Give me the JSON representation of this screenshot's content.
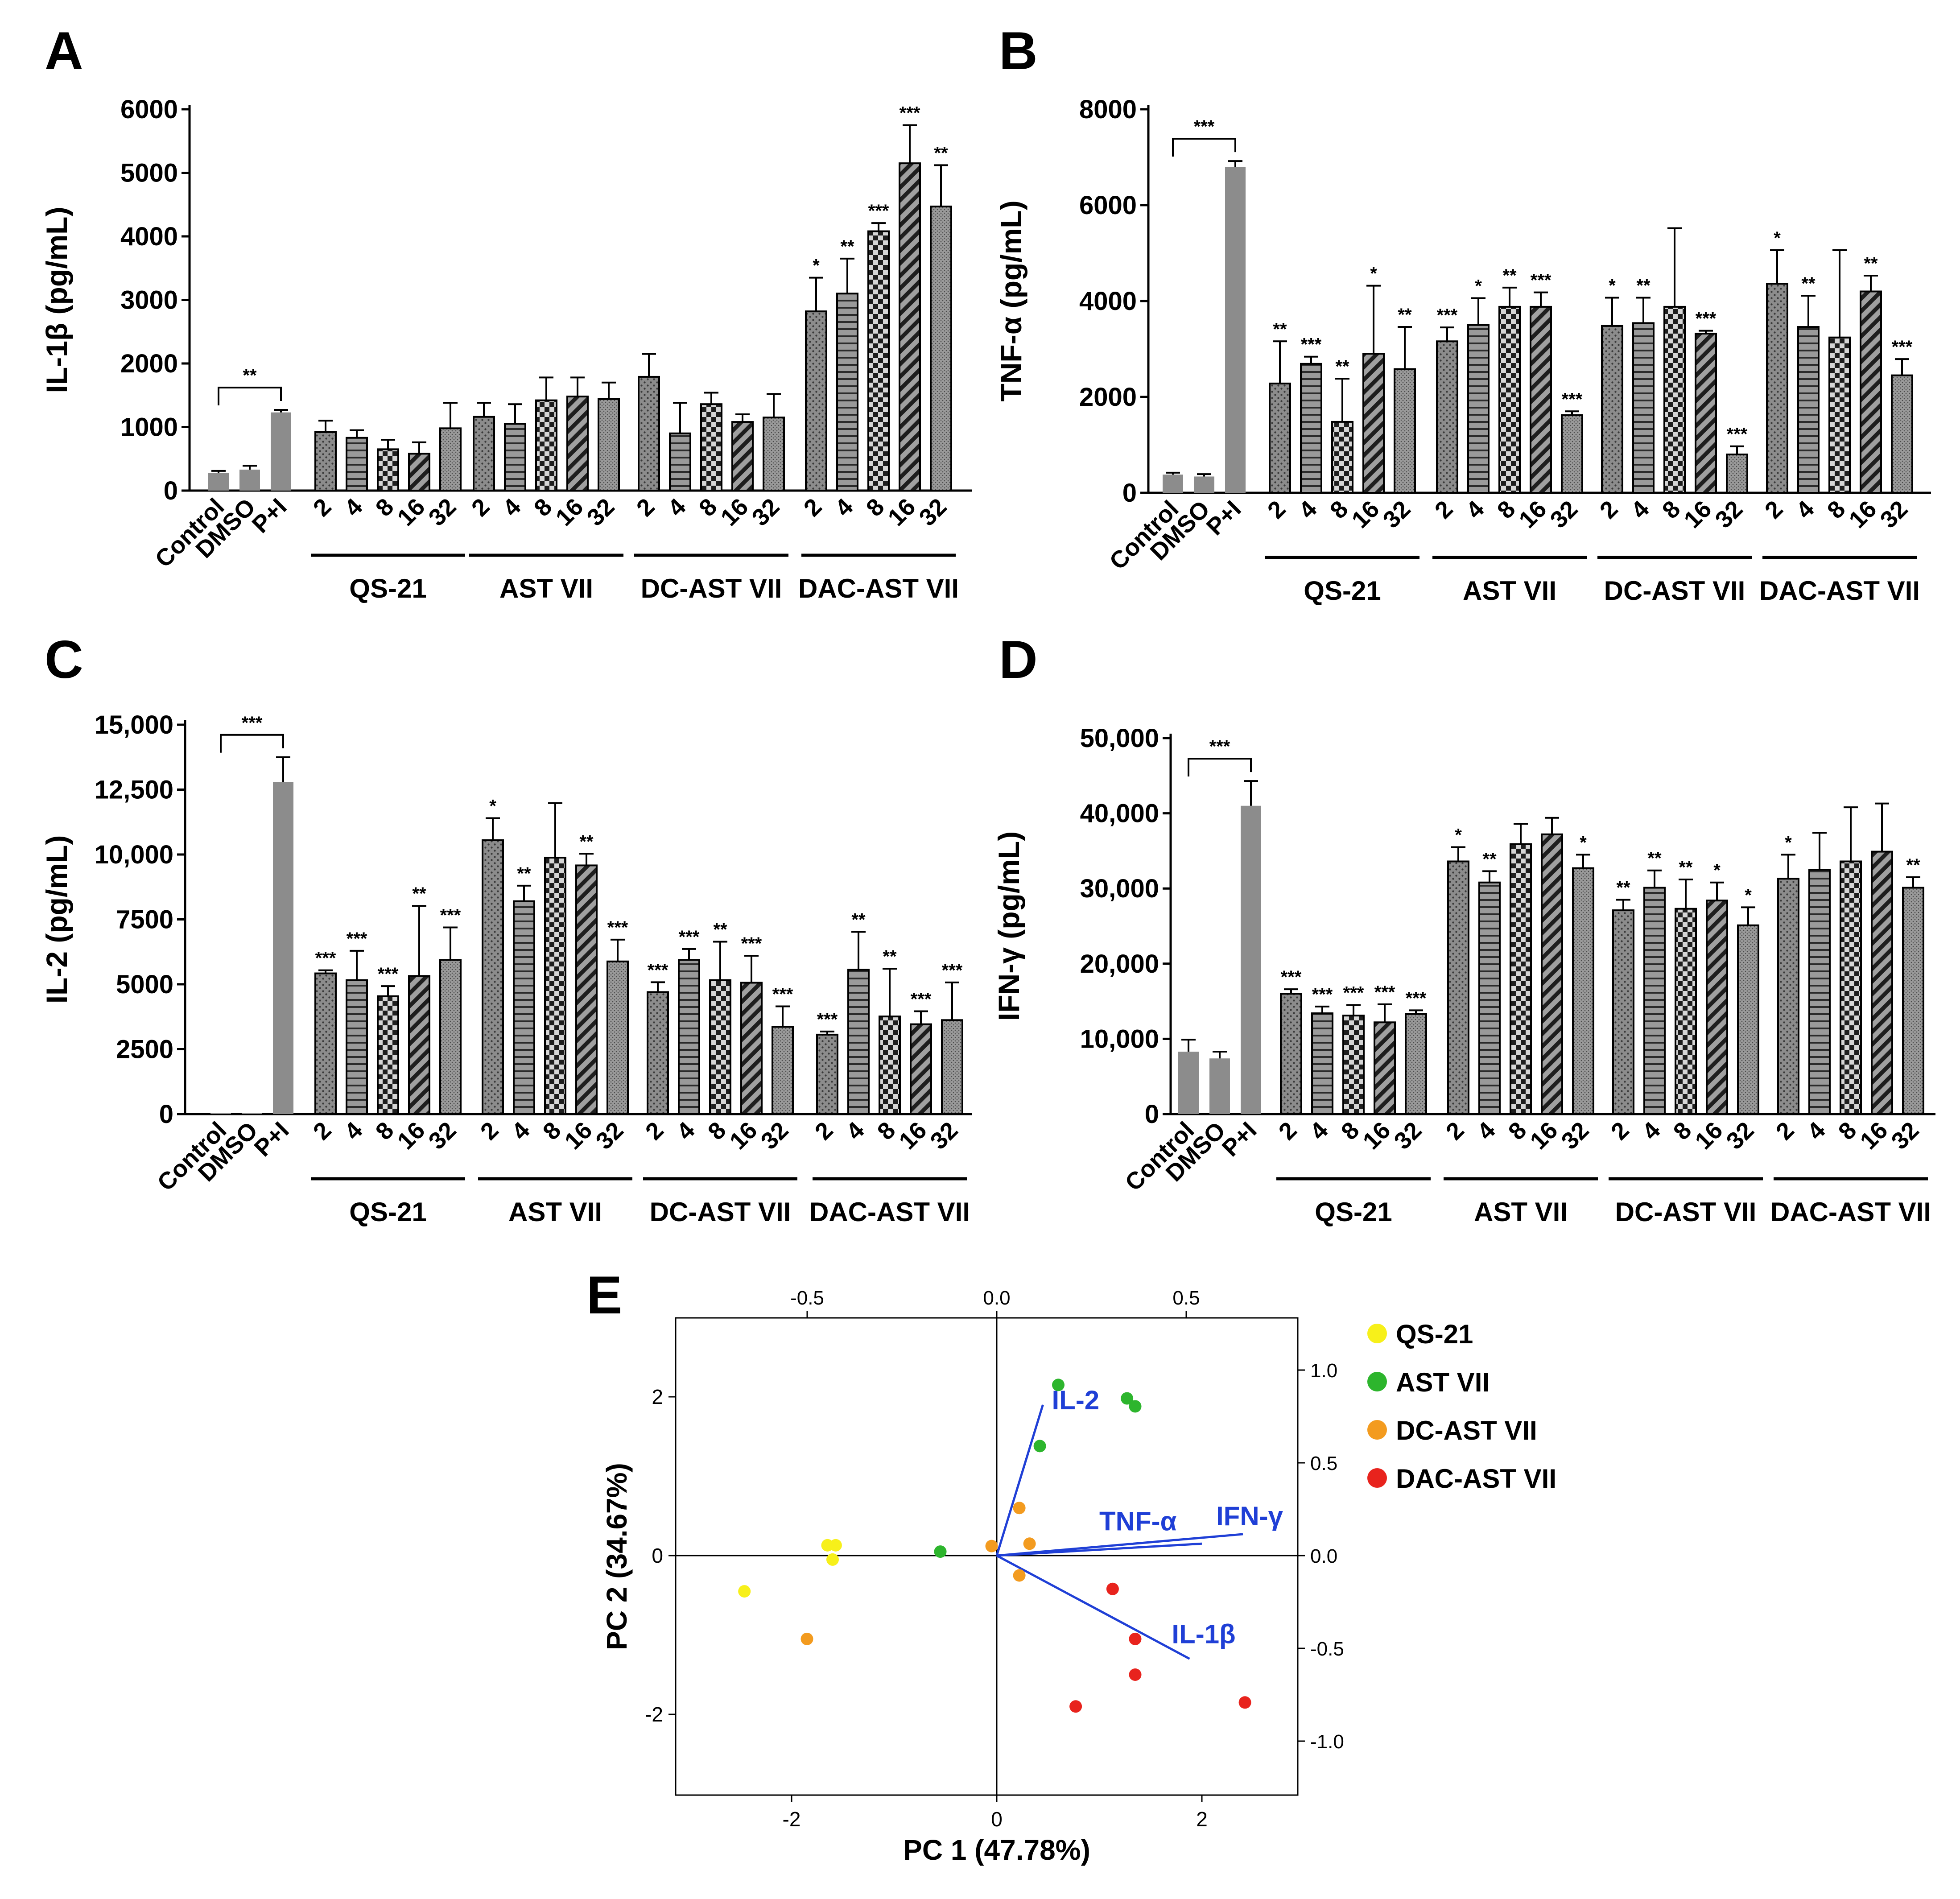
{
  "chart_data": [
    {
      "panel": "A",
      "type": "bar",
      "ylabel": "IL-1β (pg/mL)",
      "ylim": [
        0,
        6000
      ],
      "yticks": [
        "0",
        "1000",
        "2000",
        "3000",
        "4000",
        "5000",
        "6000"
      ],
      "controls": {
        "labels": [
          "Control",
          "DMSO",
          "P+I"
        ],
        "values": [
          280,
          330,
          1230
        ],
        "errors": [
          30,
          60,
          40
        ],
        "bracket_sig": "**"
      },
      "doses": [
        "2",
        "4",
        "8",
        "16",
        "32"
      ],
      "groups": [
        {
          "name": "QS-21",
          "values": [
            920,
            830,
            650,
            580,
            980
          ],
          "errors": [
            180,
            120,
            150,
            180,
            400
          ],
          "sig": [
            "",
            "",
            "",
            "",
            ""
          ]
        },
        {
          "name": "AST VII",
          "values": [
            1160,
            1050,
            1420,
            1480,
            1440
          ],
          "errors": [
            220,
            310,
            360,
            300,
            260
          ],
          "sig": [
            "",
            "",
            "",
            "",
            ""
          ]
        },
        {
          "name": "DC-AST VII",
          "values": [
            1790,
            900,
            1360,
            1080,
            1150
          ],
          "errors": [
            360,
            480,
            180,
            120,
            370
          ],
          "sig": [
            "",
            "",
            "",
            "",
            ""
          ]
        },
        {
          "name": "DAC-AST VII",
          "values": [
            2820,
            3100,
            4080,
            5150,
            4470
          ],
          "errors": [
            530,
            550,
            130,
            600,
            650
          ],
          "sig": [
            "*",
            "**",
            "***",
            "***",
            "**"
          ]
        }
      ]
    },
    {
      "panel": "B",
      "type": "bar",
      "ylabel": "TNF-α (pg/mL)",
      "ylim": [
        0,
        8000
      ],
      "yticks": [
        "0",
        "2000",
        "4000",
        "6000",
        "8000"
      ],
      "controls": {
        "labels": [
          "Control",
          "DMSO",
          "P+I"
        ],
        "values": [
          380,
          340,
          6800
        ],
        "errors": [
          40,
          50,
          120
        ],
        "bracket_sig": "***"
      },
      "doses": [
        "2",
        "4",
        "8",
        "16",
        "32"
      ],
      "groups": [
        {
          "name": "QS-21",
          "values": [
            2280,
            2690,
            1480,
            2900,
            2580
          ],
          "errors": [
            880,
            150,
            900,
            1420,
            880
          ],
          "sig": [
            "**",
            "***",
            "**",
            "*",
            "**"
          ]
        },
        {
          "name": "AST VII",
          "values": [
            3160,
            3500,
            3880,
            3880,
            1620
          ],
          "errors": [
            290,
            560,
            400,
            300,
            80
          ],
          "sig": [
            "***",
            "*",
            "**",
            "***",
            "***"
          ]
        },
        {
          "name": "DC-AST VII",
          "values": [
            3480,
            3540,
            3880,
            3320,
            800
          ],
          "errors": [
            590,
            530,
            1640,
            60,
            170
          ],
          "sig": [
            "*",
            "**",
            "",
            "***",
            "***"
          ]
        },
        {
          "name": "DAC-AST VII",
          "values": [
            4360,
            3460,
            3240,
            4200,
            2450
          ],
          "errors": [
            700,
            650,
            1820,
            330,
            340
          ],
          "sig": [
            "*",
            "**",
            "",
            "**",
            "***"
          ]
        }
      ]
    },
    {
      "panel": "C",
      "type": "bar",
      "ylabel": "IL-2 (pg/mL)",
      "ylim": [
        0,
        15000
      ],
      "yticks": [
        "0",
        "2500",
        "5000",
        "7500",
        "10,000",
        "12,500",
        "15,000"
      ],
      "controls": {
        "labels": [
          "Control",
          "DMSO",
          "P+I"
        ],
        "values": [
          40,
          40,
          12800
        ],
        "errors": [
          0,
          0,
          950
        ],
        "bracket_sig": "***"
      },
      "doses": [
        "2",
        "4",
        "8",
        "16",
        "32"
      ],
      "groups": [
        {
          "name": "QS-21",
          "values": [
            5420,
            5160,
            4540,
            5320,
            5940
          ],
          "errors": [
            120,
            1130,
            390,
            2700,
            1250
          ],
          "sig": [
            "***",
            "***",
            "***",
            "**",
            "***"
          ]
        },
        {
          "name": "AST VII",
          "values": [
            10550,
            8200,
            9880,
            9580,
            5880
          ],
          "errors": [
            850,
            600,
            2100,
            450,
            840
          ],
          "sig": [
            "*",
            "**",
            "",
            "**",
            "***"
          ]
        },
        {
          "name": "DC-AST VII",
          "values": [
            4700,
            5940,
            5160,
            5060,
            3360
          ],
          "errors": [
            380,
            420,
            1480,
            1040,
            790
          ],
          "sig": [
            "***",
            "***",
            "**",
            "***",
            "***"
          ]
        },
        {
          "name": "DAC-AST VII",
          "values": [
            3060,
            5560,
            3760,
            3460,
            3620
          ],
          "errors": [
            120,
            1460,
            1840,
            500,
            1450
          ],
          "sig": [
            "***",
            "**",
            "**",
            "***",
            "***"
          ]
        }
      ]
    },
    {
      "panel": "D",
      "type": "bar",
      "ylabel": "IFN-γ (pg/mL)",
      "ylim": [
        0,
        50000
      ],
      "yticks": [
        "0",
        "10,000",
        "20,000",
        "30,000",
        "40,000",
        "50,000"
      ],
      "controls": {
        "labels": [
          "Control",
          "DMSO",
          "P+I"
        ],
        "values": [
          8300,
          7400,
          41000
        ],
        "errors": [
          1600,
          900,
          3300
        ],
        "bracket_sig": "***"
      },
      "doses": [
        "2",
        "4",
        "8",
        "16",
        "32"
      ],
      "groups": [
        {
          "name": "QS-21",
          "values": [
            16000,
            13400,
            13100,
            12200,
            13300
          ],
          "errors": [
            600,
            900,
            1400,
            2400,
            500
          ],
          "sig": [
            "***",
            "***",
            "***",
            "***",
            "***"
          ]
        },
        {
          "name": "AST VII",
          "values": [
            33600,
            30800,
            35900,
            37200,
            32700
          ],
          "errors": [
            1900,
            1500,
            2700,
            2200,
            1800
          ],
          "sig": [
            "*",
            "**",
            "",
            "",
            "*"
          ]
        },
        {
          "name": "DC-AST VII",
          "values": [
            27100,
            30100,
            27300,
            28400,
            25100
          ],
          "errors": [
            1400,
            2300,
            3900,
            2400,
            2400
          ],
          "sig": [
            "**",
            "**",
            "**",
            "*",
            "*"
          ]
        },
        {
          "name": "DAC-AST VII",
          "values": [
            31300,
            32500,
            33600,
            34900,
            30100
          ],
          "errors": [
            3200,
            4900,
            7200,
            6400,
            1400
          ],
          "sig": [
            "*",
            "",
            "",
            "",
            "**"
          ]
        }
      ]
    },
    {
      "panel": "E",
      "type": "scatter",
      "xlabel": "PC 1 (47.78%)",
      "ylabel": "PC 2 (34.67%)",
      "xlim": [
        -3,
        3
      ],
      "ylim": [
        -3,
        3
      ],
      "xticks": [
        "-2",
        "0",
        "2"
      ],
      "yticks": [
        "-2",
        "0",
        "2"
      ],
      "top_ticks": [
        "-0.5",
        "0.0",
        "0.5"
      ],
      "right_ticks": [
        "1.0",
        "0.5",
        "0.0",
        "-0.5",
        "-1.0"
      ],
      "series": [
        {
          "name": "QS-21",
          "color": "#f7f01a",
          "points": [
            [
              -1.65,
              0.13
            ],
            [
              -1.57,
              0.13
            ],
            [
              -1.6,
              -0.05
            ],
            [
              -2.46,
              -0.45
            ]
          ]
        },
        {
          "name": "AST VII",
          "color": "#2db52d",
          "points": [
            [
              0.6,
              2.15
            ],
            [
              1.27,
              1.98
            ],
            [
              1.35,
              1.88
            ],
            [
              0.42,
              1.38
            ],
            [
              -0.55,
              0.05
            ]
          ]
        },
        {
          "name": "DC-AST VII",
          "color": "#f39b1f",
          "points": [
            [
              0.22,
              0.6
            ],
            [
              -0.05,
              0.12
            ],
            [
              0.32,
              0.15
            ],
            [
              0.22,
              -0.25
            ],
            [
              -1.85,
              -1.05
            ]
          ]
        },
        {
          "name": "DAC-AST VII",
          "color": "#e8231d",
          "points": [
            [
              1.13,
              -0.42
            ],
            [
              1.35,
              -1.05
            ],
            [
              1.35,
              -1.5
            ],
            [
              0.77,
              -1.9
            ],
            [
              2.42,
              -1.85
            ]
          ]
        }
      ],
      "loadings": [
        {
          "label": "IL-2",
          "x": 0.45,
          "y": 1.9
        },
        {
          "label": "TNF-α",
          "x": 2.0,
          "y": 0.15
        },
        {
          "label": "IFN-γ",
          "x": 2.4,
          "y": 0.27
        },
        {
          "label": "IL-1β",
          "x": 1.88,
          "y": -1.3
        }
      ]
    }
  ],
  "panel_letters": [
    "A",
    "B",
    "C",
    "D",
    "E"
  ],
  "colors": {
    "solid_gray": "#8c8c8c",
    "pattern_bar": "#7a7a7a",
    "loading_arrows": "#1f3fd6",
    "loading_labels": "#1f3fd6",
    "axis": "#000000"
  }
}
